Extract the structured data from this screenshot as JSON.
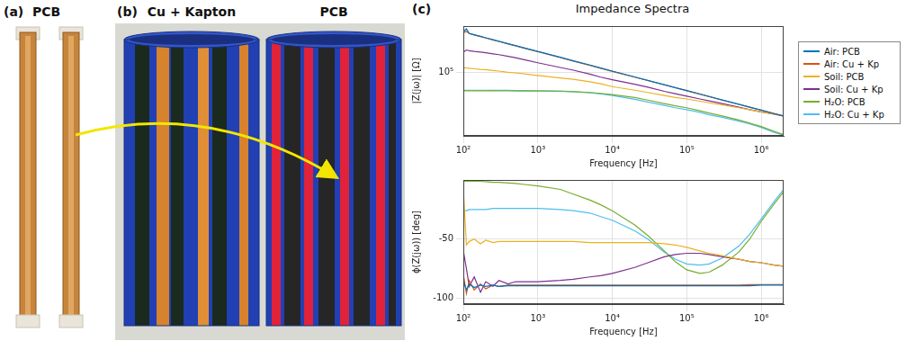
{
  "figure": {
    "panels": [
      {
        "letter": "(a)",
        "title": "PCB"
      },
      {
        "letter": "(b)",
        "titles": [
          "Cu + Kapton",
          "PCB"
        ]
      },
      {
        "letter": "(c)",
        "title": "Impedance Spectra"
      }
    ]
  },
  "chart_data": [
    {
      "type": "line",
      "log": true,
      "grid": true,
      "legend": "right",
      "x_label": "Frequency [Hz]",
      "y_label": "|Z(jω)| [Ω]",
      "xlim": [
        100,
        2000000
      ],
      "xticks": [
        {
          "value": 100,
          "label": "10²"
        },
        {
          "value": 1000,
          "label": "10³"
        },
        {
          "value": 10000,
          "label": "10⁴"
        },
        {
          "value": 100000,
          "label": "10⁵"
        },
        {
          "value": 1000000,
          "label": "10⁶"
        }
      ],
      "ylim": [
        12500,
        460000
      ],
      "yticks": [
        {
          "value": 100000,
          "label": "10⁵"
        }
      ],
      "x": [
        100,
        110,
        120,
        140,
        170,
        200,
        250,
        300,
        400,
        500,
        700,
        1000,
        2000,
        3000,
        5000,
        7000,
        10000,
        20000,
        30000,
        50000,
        70000,
        100000,
        150000,
        200000,
        300000,
        500000,
        700000,
        1000000,
        1500000,
        2000000
      ],
      "series": [
        {
          "name": "Air: PCB",
          "color": "#0072BD",
          "values": [
            380000,
            420000,
            361000,
            346000,
            328000,
            313000,
            294000,
            280000,
            258000,
            243000,
            221000,
            200000,
            165000,
            147000,
            128000,
            116000,
            105000,
            86700,
            77400,
            67100,
            61100,
            55300,
            49400,
            45600,
            40700,
            35300,
            32100,
            29100,
            26000,
            24000
          ]
        },
        {
          "name": "Air: Cu + Kp",
          "color": "#D95319",
          "values": [
            370000,
            385000,
            360000,
            344000,
            326000,
            311000,
            292000,
            278000,
            256000,
            241000,
            219000,
            198000,
            164000,
            146000,
            127000,
            115000,
            104000,
            86000,
            77000,
            66800,
            60800,
            55000,
            49200,
            45400,
            40500,
            35200,
            32000,
            29000,
            25900,
            23900
          ]
        },
        {
          "name": "Soil: PCB",
          "color": "#EDB120",
          "values": [
            118000,
            116000,
            115000,
            113000,
            111000,
            110000,
            107000,
            105000,
            101000,
            99000,
            95000,
            91000,
            84000,
            80000,
            74000,
            69000,
            63000,
            56000,
            52000,
            47000,
            44000,
            42000,
            39000,
            37000,
            34500,
            31500,
            29500,
            27500,
            25500,
            24000
          ]
        },
        {
          "name": "Soil: Cu + Kp",
          "color": "#7E2F8E",
          "values": [
            195000,
            210000,
            205000,
            200000,
            196000,
            192000,
            185000,
            180000,
            170000,
            163000,
            150000,
            138000,
            118000,
            108000,
            95000,
            86000,
            79000,
            68000,
            62000,
            54000,
            50000,
            46000,
            42000,
            39500,
            36000,
            32000,
            29500,
            27500,
            25500,
            24000
          ]
        },
        {
          "name": "H₂O: PCB",
          "color": "#77AC30",
          "values": [
            55000,
            55000,
            55000,
            55000,
            55000,
            55000,
            54900,
            54900,
            54800,
            54700,
            54600,
            54500,
            54000,
            53500,
            52000,
            50500,
            48500,
            44000,
            40500,
            36000,
            33500,
            31500,
            28500,
            26500,
            24000,
            21000,
            19000,
            17000,
            14500,
            13000
          ]
        },
        {
          "name": "H₂O: Cu + Kp",
          "color": "#4DBEEE",
          "values": [
            56000,
            56000,
            56000,
            56000,
            56000,
            56000,
            55900,
            55800,
            55700,
            55600,
            55400,
            55200,
            54500,
            53500,
            51500,
            49500,
            47000,
            41500,
            38000,
            34000,
            31500,
            29500,
            27000,
            25000,
            23000,
            20300,
            18500,
            16500,
            14000,
            12800
          ]
        }
      ]
    },
    {
      "type": "line",
      "log": "x",
      "grid": true,
      "x_label": "Frequency [Hz]",
      "y_label": "ϕ(Z(jω)) [deg]",
      "xlim": [
        100,
        2000000
      ],
      "xticks": [
        {
          "value": 100,
          "label": "10²"
        },
        {
          "value": 1000,
          "label": "10³"
        },
        {
          "value": 10000,
          "label": "10⁴"
        },
        {
          "value": 100000,
          "label": "10⁵"
        },
        {
          "value": 1000000,
          "label": "10⁶"
        }
      ],
      "ylim": [
        -105,
        0
      ],
      "yticks": [
        -100,
        -50
      ],
      "x": [
        100,
        110,
        120,
        140,
        170,
        200,
        250,
        300,
        400,
        500,
        700,
        1000,
        2000,
        3000,
        5000,
        7000,
        10000,
        20000,
        30000,
        50000,
        70000,
        100000,
        150000,
        200000,
        300000,
        500000,
        700000,
        1000000,
        1500000,
        2000000
      ],
      "series": [
        {
          "color": "#0072BD",
          "values": [
            -85,
            -93,
            -88,
            -91,
            -89,
            -90,
            -89,
            -90,
            -89.5,
            -89.5,
            -89.5,
            -89.5,
            -89.5,
            -89.5,
            -89.5,
            -89.5,
            -89.5,
            -89.5,
            -89.5,
            -89.5,
            -89.5,
            -89.5,
            -89.5,
            -89.5,
            -89.5,
            -89.5,
            -89.5,
            -89,
            -89,
            -89
          ]
        },
        {
          "color": "#D95319",
          "values": [
            -80,
            -96,
            -85,
            -93,
            -88,
            -92,
            -89,
            -90,
            -89,
            -89,
            -89,
            -89,
            -89,
            -89,
            -89,
            -89,
            -89,
            -89,
            -89,
            -89,
            -89,
            -89,
            -89,
            -89,
            -89,
            -89,
            -88.5,
            -88.5,
            -88.5,
            -88.5
          ]
        },
        {
          "color": "#EDB120",
          "values": [
            -8,
            -55,
            -52,
            -50,
            -54,
            -51,
            -53,
            -52,
            -52,
            -52,
            -52,
            -52,
            -52,
            -52,
            -53,
            -53,
            -53,
            -53,
            -53,
            -54,
            -55,
            -57,
            -60,
            -62,
            -64,
            -67,
            -69,
            -70,
            -72,
            -73
          ]
        },
        {
          "color": "#7E2F8E",
          "values": [
            -60,
            -75,
            -90,
            -82,
            -95,
            -86,
            -90,
            -85,
            -88,
            -86,
            -86,
            -86,
            -85,
            -84,
            -82,
            -81,
            -79,
            -74,
            -70,
            -65,
            -63,
            -62,
            -62,
            -63,
            -65,
            -67,
            -69,
            -70,
            -72,
            -73
          ]
        },
        {
          "color": "#77AC30",
          "values": [
            -1,
            -1,
            -1,
            -1,
            -1,
            -1.5,
            -2,
            -2,
            -2.5,
            -3,
            -4,
            -5,
            -8,
            -12,
            -17,
            -21,
            -26,
            -38,
            -47,
            -60,
            -69,
            -76,
            -79,
            -78,
            -72,
            -61,
            -50,
            -35,
            -20,
            -10
          ]
        },
        {
          "color": "#4DBEEE",
          "values": [
            -26,
            -26,
            -25,
            -25,
            -25,
            -25,
            -24,
            -24,
            -24,
            -24,
            -24,
            -24,
            -25,
            -26,
            -28,
            -31,
            -34,
            -43,
            -50,
            -61,
            -67,
            -71,
            -72,
            -71,
            -66,
            -56,
            -46,
            -33,
            -18,
            -8
          ]
        }
      ]
    }
  ]
}
